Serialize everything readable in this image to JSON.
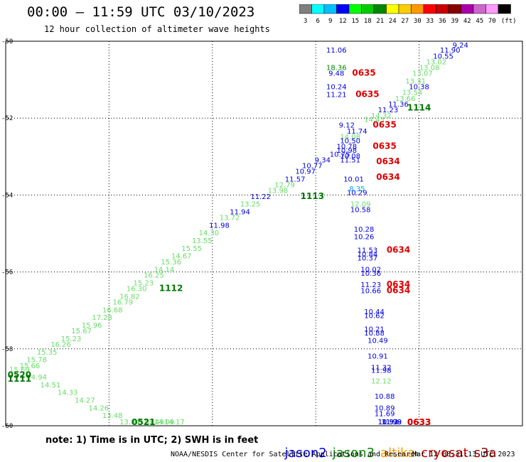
{
  "header": {
    "title": "00:00 – 11:59 UTC 03/10/2023",
    "subtitle": "12 hour collection of altimeter wave heights"
  },
  "colorbar": {
    "labels": [
      "3",
      "6",
      "9",
      "12",
      "15",
      "18",
      "21",
      "24",
      "27",
      "30",
      "33",
      "36",
      "39",
      "42",
      "45",
      "70",
      "(ft)"
    ],
    "colors": [
      "#7f7f7f",
      "#00ffff",
      "#00bfff",
      "#0000ff",
      "#00ff00",
      "#00cc00",
      "#008800",
      "#ffff00",
      "#ffcc00",
      "#ff9900",
      "#ff0000",
      "#cc0000",
      "#880000",
      "#aa00aa",
      "#cc66cc",
      "#ff99ff",
      "#000000"
    ]
  },
  "footer": {
    "note": "note: 1) Time is in UTC; 2) SWH is in feet",
    "legend": [
      {
        "label": "jason2",
        "color": "#0000dd"
      },
      {
        "label": "jason3",
        "color": "#008800"
      },
      {
        "label": "altika",
        "color": "#ff9900"
      },
      {
        "label": "cryosat",
        "color": "#cc0000"
      },
      {
        "label": "s3a",
        "color": "#990000"
      }
    ],
    "credit": "NOAA/NESDIS Center for Satellite Applications and Research",
    "timestamp": "Mar 12 08:31:13 UTC 2023"
  },
  "chart_data": {
    "type": "scatter",
    "xlim": [
      75,
      90
    ],
    "ylim": [
      -60,
      -50
    ],
    "x_ticks": [
      "75",
      "78",
      "81",
      "84",
      "87",
      "90"
    ],
    "y_ticks": [
      "-50",
      "-52",
      "-54",
      "-56",
      "-58",
      "-60"
    ],
    "x_tick_values": [
      75,
      78,
      81,
      84,
      87,
      90
    ],
    "y_tick_values": [
      -50,
      -52,
      -54,
      -56,
      -58,
      -60
    ],
    "grid": true,
    "points": [
      {
        "x": 88.2,
        "y": -50.12,
        "label": "9.24",
        "color": "#0000dd"
      },
      {
        "x": 87.9,
        "y": -50.3,
        "label": "11.90",
        "color": "#0000dd"
      },
      {
        "x": 87.7,
        "y": -50.45,
        "label": "10.55",
        "color": "#0000dd"
      },
      {
        "x": 87.5,
        "y": -50.6,
        "label": "13.02",
        "color": "#66dd66"
      },
      {
        "x": 87.3,
        "y": -50.75,
        "label": "13.08",
        "color": "#66dd66"
      },
      {
        "x": 87.1,
        "y": -50.9,
        "label": "13.07",
        "color": "#66dd66"
      },
      {
        "x": 86.9,
        "y": -51.1,
        "label": "13.31",
        "color": "#66dd66"
      },
      {
        "x": 87.0,
        "y": -51.25,
        "label": "10.38",
        "color": "#0000dd"
      },
      {
        "x": 86.8,
        "y": -51.4,
        "label": "13.54",
        "color": "#66dd66"
      },
      {
        "x": 86.6,
        "y": -51.55,
        "label": "13.66",
        "color": "#66dd66"
      },
      {
        "x": 86.4,
        "y": -51.7,
        "label": "11.36",
        "color": "#0000dd"
      },
      {
        "x": 86.1,
        "y": -51.85,
        "label": "11.23",
        "color": "#0000dd"
      },
      {
        "x": 85.9,
        "y": -52.0,
        "label": "14.32",
        "color": "#66dd66"
      },
      {
        "x": 85.7,
        "y": -52.1,
        "label": "14.43",
        "color": "#66dd66"
      },
      {
        "x": 84.9,
        "y": -52.25,
        "label": "9.12",
        "color": "#0000dd"
      },
      {
        "x": 85.2,
        "y": -52.4,
        "label": "11.74",
        "color": "#0000dd"
      },
      {
        "x": 85.0,
        "y": -52.55,
        "label": "14.08",
        "color": "#66dd66"
      },
      {
        "x": 85.0,
        "y": -52.65,
        "label": "10.50",
        "color": "#0000dd"
      },
      {
        "x": 84.9,
        "y": -52.8,
        "label": "10.78",
        "color": "#0000dd"
      },
      {
        "x": 84.9,
        "y": -52.9,
        "label": "10.98",
        "color": "#0000dd"
      },
      {
        "x": 84.7,
        "y": -53.0,
        "label": "10.75",
        "color": "#0000dd"
      },
      {
        "x": 85.0,
        "y": -53.05,
        "label": "10.08",
        "color": "#0000dd"
      },
      {
        "x": 85.0,
        "y": -53.15,
        "label": "11.51",
        "color": "#0000dd"
      },
      {
        "x": 84.2,
        "y": -53.15,
        "label": "9.34",
        "color": "#0000dd"
      },
      {
        "x": 83.9,
        "y": -53.3,
        "label": "10.77",
        "color": "#0000dd"
      },
      {
        "x": 83.7,
        "y": -53.45,
        "label": "10.97",
        "color": "#0000dd"
      },
      {
        "x": 83.4,
        "y": -53.65,
        "label": "11.57",
        "color": "#0000dd"
      },
      {
        "x": 83.1,
        "y": -53.8,
        "label": "12.79",
        "color": "#66dd66"
      },
      {
        "x": 82.9,
        "y": -53.95,
        "label": "13.98",
        "color": "#66dd66"
      },
      {
        "x": 82.4,
        "y": -54.1,
        "label": "11.22",
        "color": "#0000dd"
      },
      {
        "x": 82.1,
        "y": -54.3,
        "label": "13.25",
        "color": "#66dd66"
      },
      {
        "x": 81.8,
        "y": -54.5,
        "label": "11.94",
        "color": "#0000dd"
      },
      {
        "x": 81.5,
        "y": -54.65,
        "label": "13.72",
        "color": "#66dd66"
      },
      {
        "x": 81.2,
        "y": -54.85,
        "label": "11.98",
        "color": "#0000dd"
      },
      {
        "x": 80.9,
        "y": -55.05,
        "label": "14.30",
        "color": "#66dd66"
      },
      {
        "x": 80.7,
        "y": -55.25,
        "label": "13.55",
        "color": "#66dd66"
      },
      {
        "x": 80.4,
        "y": -55.45,
        "label": "15.55",
        "color": "#66dd66"
      },
      {
        "x": 80.1,
        "y": -55.65,
        "label": "14.67",
        "color": "#66dd66"
      },
      {
        "x": 79.8,
        "y": -55.8,
        "label": "15.36",
        "color": "#66dd66"
      },
      {
        "x": 79.6,
        "y": -56.0,
        "label": "14.14",
        "color": "#66dd66"
      },
      {
        "x": 79.3,
        "y": -56.15,
        "label": "16.25",
        "color": "#66dd66"
      },
      {
        "x": 79.0,
        "y": -56.35,
        "label": "15.23",
        "color": "#66dd66"
      },
      {
        "x": 78.8,
        "y": -56.5,
        "label": "16.30",
        "color": "#66dd66"
      },
      {
        "x": 78.6,
        "y": -56.7,
        "label": "16.82",
        "color": "#66dd66"
      },
      {
        "x": 78.4,
        "y": -56.85,
        "label": "16.79",
        "color": "#66dd66"
      },
      {
        "x": 78.1,
        "y": -57.05,
        "label": "16.68",
        "color": "#66dd66"
      },
      {
        "x": 77.8,
        "y": -57.25,
        "label": "17.28",
        "color": "#66dd66"
      },
      {
        "x": 77.5,
        "y": -57.45,
        "label": "15.96",
        "color": "#66dd66"
      },
      {
        "x": 77.2,
        "y": -57.6,
        "label": "15.67",
        "color": "#66dd66"
      },
      {
        "x": 76.9,
        "y": -57.8,
        "label": "15.23",
        "color": "#66dd66"
      },
      {
        "x": 76.6,
        "y": -57.95,
        "label": "16.26",
        "color": "#66dd66"
      },
      {
        "x": 76.2,
        "y": -58.15,
        "label": "15.35",
        "color": "#66dd66"
      },
      {
        "x": 75.9,
        "y": -58.35,
        "label": "15.78",
        "color": "#66dd66"
      },
      {
        "x": 75.7,
        "y": -58.5,
        "label": "15.66",
        "color": "#66dd66"
      },
      {
        "x": 75.4,
        "y": -58.6,
        "label": "15.69",
        "color": "#66dd66"
      },
      {
        "x": 75.9,
        "y": -58.8,
        "label": "14.94",
        "color": "#66dd66"
      },
      {
        "x": 76.3,
        "y": -59.0,
        "label": "14.51",
        "color": "#66dd66"
      },
      {
        "x": 76.8,
        "y": -59.2,
        "label": "14.33",
        "color": "#66dd66"
      },
      {
        "x": 77.3,
        "y": -59.4,
        "label": "14.27",
        "color": "#66dd66"
      },
      {
        "x": 77.7,
        "y": -59.6,
        "label": "14.26",
        "color": "#66dd66"
      },
      {
        "x": 78.1,
        "y": -59.8,
        "label": "13.48",
        "color": "#66dd66"
      },
      {
        "x": 78.6,
        "y": -60.0,
        "label": "13.84",
        "color": "#66dd66"
      },
      {
        "x": 79.0,
        "y": -60.2,
        "label": "13.87",
        "color": "#66dd66"
      },
      {
        "x": 79.3,
        "y": -60.35,
        "label": "13.49",
        "color": "#66dd66"
      },
      {
        "x": 79.6,
        "y": -60.45,
        "label": "14.09",
        "color": "#66dd66"
      },
      {
        "x": 79.9,
        "y": -60.6,
        "label": "14.17",
        "color": "#66dd66"
      },
      {
        "x": 84.6,
        "y": -50.3,
        "label": "11.06",
        "color": "#0000dd"
      },
      {
        "x": 84.6,
        "y": -50.75,
        "label": "18.36",
        "color": "#008800"
      },
      {
        "x": 84.6,
        "y": -50.9,
        "label": "9.48",
        "color": "#0000dd"
      },
      {
        "x": 84.6,
        "y": -51.25,
        "label": "10.24",
        "color": "#0000dd"
      },
      {
        "x": 84.6,
        "y": -51.45,
        "label": "11.21",
        "color": "#0000dd"
      },
      {
        "x": 85.1,
        "y": -53.65,
        "label": "10.01",
        "color": "#0000dd"
      },
      {
        "x": 85.2,
        "y": -53.9,
        "label": "8.35",
        "color": "#00aaff"
      },
      {
        "x": 85.2,
        "y": -54.0,
        "label": "10.29",
        "color": "#0000dd"
      },
      {
        "x": 85.3,
        "y": -54.3,
        "label": "12.09",
        "color": "#66dd66"
      },
      {
        "x": 85.3,
        "y": -54.45,
        "label": "10.58",
        "color": "#0000dd"
      },
      {
        "x": 85.4,
        "y": -54.95,
        "label": "10.28",
        "color": "#0000dd"
      },
      {
        "x": 85.4,
        "y": -55.15,
        "label": "10.26",
        "color": "#0000dd"
      },
      {
        "x": 85.5,
        "y": -55.5,
        "label": "11.53",
        "color": "#0000dd"
      },
      {
        "x": 85.5,
        "y": -55.6,
        "label": "10.84",
        "color": "#0000dd"
      },
      {
        "x": 85.5,
        "y": -55.7,
        "label": "10.37",
        "color": "#0000dd"
      },
      {
        "x": 85.6,
        "y": -56.0,
        "label": "10.02",
        "color": "#0000dd"
      },
      {
        "x": 85.6,
        "y": -56.1,
        "label": "10.36",
        "color": "#0000dd"
      },
      {
        "x": 85.6,
        "y": -56.4,
        "label": "11.23",
        "color": "#0000dd"
      },
      {
        "x": 85.6,
        "y": -56.55,
        "label": "10.66",
        "color": "#0000dd"
      },
      {
        "x": 85.7,
        "y": -57.1,
        "label": "10.44",
        "color": "#0000dd"
      },
      {
        "x": 85.7,
        "y": -57.2,
        "label": "10.62",
        "color": "#0000dd"
      },
      {
        "x": 85.7,
        "y": -57.55,
        "label": "10.21",
        "color": "#0000dd"
      },
      {
        "x": 85.7,
        "y": -57.65,
        "label": "10.88",
        "color": "#0000dd"
      },
      {
        "x": 85.8,
        "y": -57.85,
        "label": "10.49",
        "color": "#0000dd"
      },
      {
        "x": 85.8,
        "y": -58.25,
        "label": "10.91",
        "color": "#0000dd"
      },
      {
        "x": 85.9,
        "y": -58.55,
        "label": "11.32",
        "color": "#0000dd"
      },
      {
        "x": 85.9,
        "y": -58.62,
        "label": "11.98",
        "color": "#0000dd"
      },
      {
        "x": 85.9,
        "y": -58.9,
        "label": "12.12",
        "color": "#66dd66"
      },
      {
        "x": 86.0,
        "y": -59.3,
        "label": "10.88",
        "color": "#0000dd"
      },
      {
        "x": 86.0,
        "y": -59.6,
        "label": "10.89",
        "color": "#0000dd"
      },
      {
        "x": 86.0,
        "y": -59.75,
        "label": "11.69",
        "color": "#0000dd"
      },
      {
        "x": 86.1,
        "y": -60.25,
        "label": "10.93",
        "color": "#0000dd"
      },
      {
        "x": 86.1,
        "y": -60.35,
        "label": "11.52",
        "color": "#0000dd"
      },
      {
        "x": 86.2,
        "y": -60.75,
        "label": "11.99",
        "color": "#0000dd"
      },
      {
        "x": 86.2,
        "y": -60.85,
        "label": "11.98",
        "color": "#0000dd"
      }
    ],
    "time_labels": [
      {
        "x": 85.4,
        "y": -50.9,
        "label": "0635",
        "color": "#dd0000"
      },
      {
        "x": 85.5,
        "y": -51.45,
        "label": "0635",
        "color": "#dd0000"
      },
      {
        "x": 86.0,
        "y": -52.25,
        "label": "0635",
        "color": "#dd0000"
      },
      {
        "x": 86.0,
        "y": -52.8,
        "label": "0635",
        "color": "#dd0000"
      },
      {
        "x": 86.1,
        "y": -53.2,
        "label": "0634",
        "color": "#dd0000"
      },
      {
        "x": 86.1,
        "y": -53.6,
        "label": "0634",
        "color": "#dd0000"
      },
      {
        "x": 86.4,
        "y": -55.5,
        "label": "0634",
        "color": "#dd0000"
      },
      {
        "x": 86.4,
        "y": -56.4,
        "label": "0634",
        "color": "#dd0000"
      },
      {
        "x": 86.4,
        "y": -56.55,
        "label": "0634",
        "color": "#dd0000"
      },
      {
        "x": 87.0,
        "y": -60.7,
        "label": "0633",
        "color": "#dd0000"
      },
      {
        "x": 87.0,
        "y": -60.8,
        "label": "0633",
        "color": "#dd0000"
      },
      {
        "x": 87.0,
        "y": -51.8,
        "label": "1114",
        "color": "#007700"
      },
      {
        "x": 83.9,
        "y": -54.1,
        "label": "1113",
        "color": "#007700"
      },
      {
        "x": 79.8,
        "y": -56.5,
        "label": "1112",
        "color": "#007700"
      },
      {
        "x": 75.4,
        "y": -58.75,
        "label": "0520",
        "color": "#007700"
      },
      {
        "x": 75.4,
        "y": -58.85,
        "label": "1111",
        "color": "#007700"
      },
      {
        "x": 79.0,
        "y": -60.35,
        "label": "0521",
        "color": "#007700"
      }
    ]
  }
}
